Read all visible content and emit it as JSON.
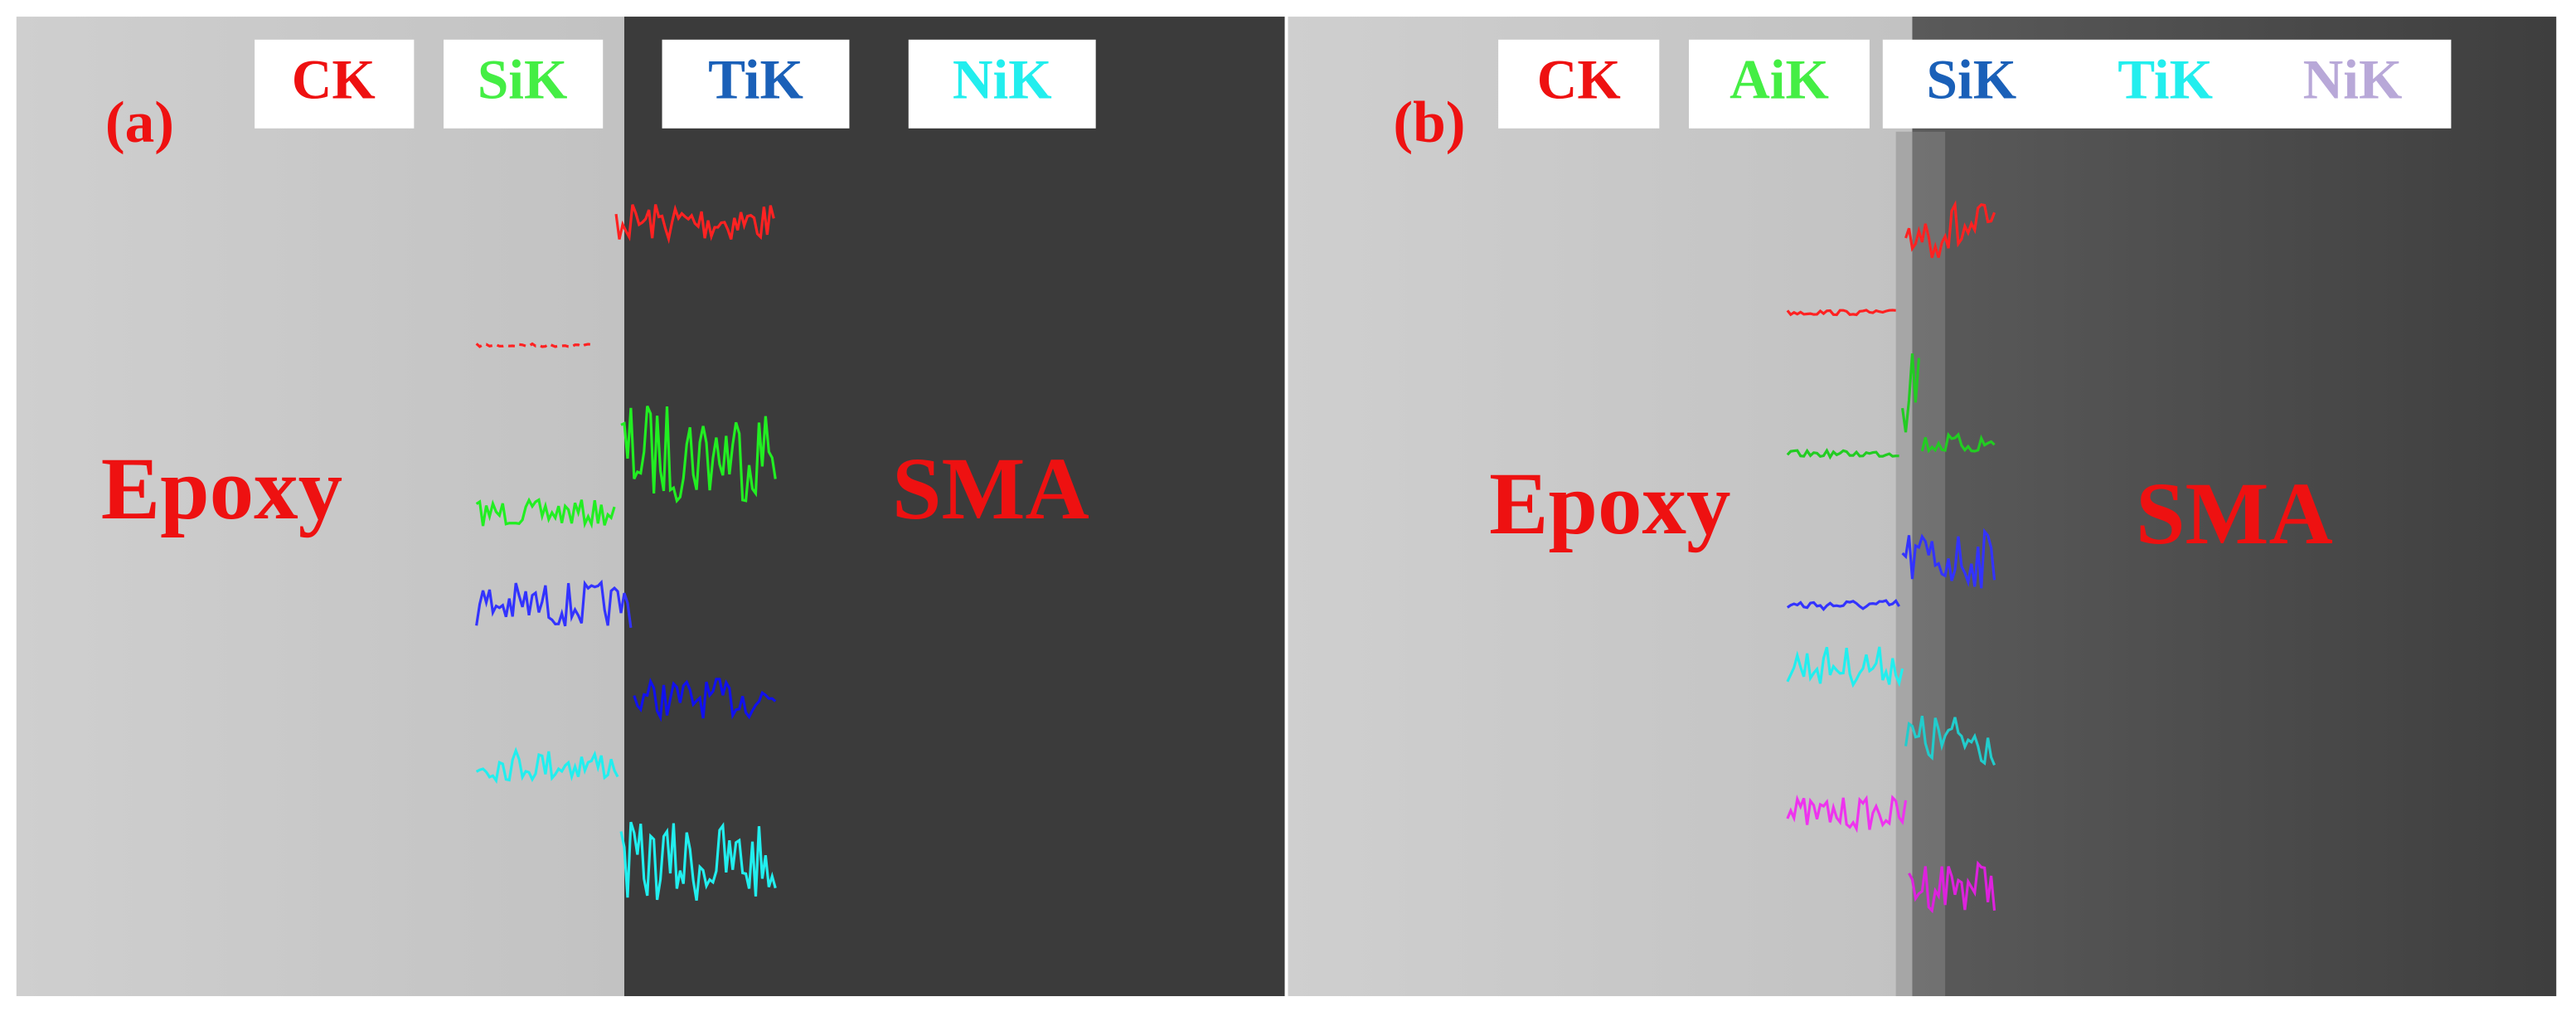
{
  "panels": [
    {
      "label": "(a)",
      "legend": [
        "CK",
        "SiK",
        "TiK",
        "NiK"
      ],
      "left_label": "Epoxy",
      "right_label": "SMA"
    },
    {
      "label": "(b)",
      "legend": [
        "CK",
        "AiK",
        "SiK",
        "TiK",
        "NiK"
      ],
      "left_label": "Epoxy",
      "right_label": "SMA"
    }
  ]
}
